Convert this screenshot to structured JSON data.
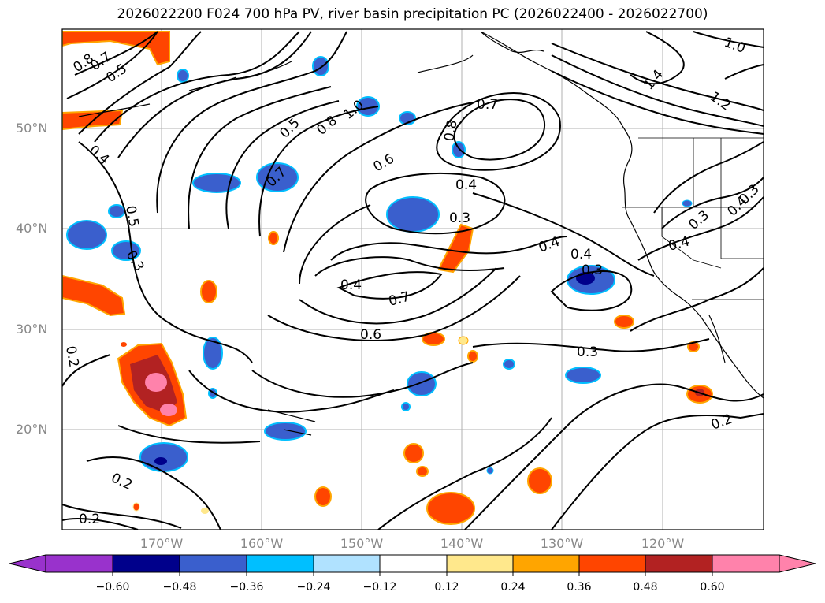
{
  "title": "2026022200 F024 700 hPa PV, river basin precipitation PC (2026022400 - 2026022700)",
  "map": {
    "lat_labels": [
      "50°N",
      "40°N",
      "30°N",
      "20°N"
    ],
    "lon_labels": [
      "170°W",
      "160°W",
      "150°W",
      "140°W",
      "130°W",
      "120°W"
    ],
    "contour_labels": [
      "0.8",
      "0.7",
      "0.5",
      "0.4",
      "0.3",
      "0.5",
      "0.5",
      "0.8",
      "1.0",
      "0.7",
      "0.6",
      "0.8",
      "0.7",
      "0.4",
      "0.3",
      "0.4",
      "0.4",
      "0.3",
      "0.4",
      "0.7",
      "0.6",
      "0.3",
      "0.2",
      "0.2",
      "0.2",
      "0.2",
      "1.0",
      "1.4",
      "1.2",
      "0.3",
      "0.4",
      "0.4",
      "0.3"
    ],
    "coast_color": "#000000",
    "grid_color": "#b0b0b0"
  },
  "colorbar": {
    "ticks": [
      "−0.60",
      "−0.48",
      "−0.36",
      "−0.24",
      "−0.12",
      "0.12",
      "0.24",
      "0.36",
      "0.48",
      "0.60"
    ],
    "colors": [
      "#9932cc",
      "#00008b",
      "#3a5fcd",
      "#00bfff",
      "#b0e2ff",
      "#ffffff",
      "#ffe88c",
      "#ffa500",
      "#ff4500",
      "#b22222",
      "#ff82ab"
    ]
  }
}
